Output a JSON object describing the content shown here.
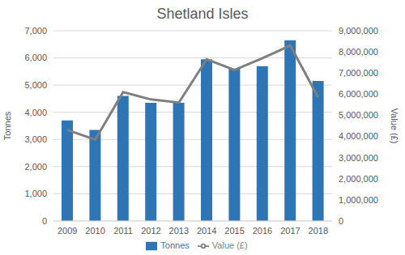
{
  "chart_data": {
    "type": "bar",
    "title": "Shetland Isles",
    "categories": [
      "2009",
      "2010",
      "2011",
      "2012",
      "2013",
      "2014",
      "2015",
      "2016",
      "2017",
      "2018"
    ],
    "series": [
      {
        "name": "Tonnes",
        "type": "bar",
        "color": "#2e75b6",
        "values": [
          3700,
          3350,
          4600,
          4350,
          4350,
          5950,
          5600,
          5700,
          6650,
          5150
        ]
      },
      {
        "name": "Value (£)",
        "type": "line",
        "axis": "y2",
        "color": "#7f7f7f",
        "marker": "none",
        "values": [
          4300000,
          3850000,
          6100000,
          5750000,
          5600000,
          7650000,
          7150000,
          7700000,
          8300000,
          5850000
        ]
      }
    ],
    "y_label": "Tonnes",
    "y2_label": "Value (£)",
    "ylim": [
      0,
      7000
    ],
    "yticks": [
      0,
      {
        "value": 1000,
        "label": "1,000"
      },
      {
        "value": 2000,
        "label": "2,000"
      },
      {
        "value": 3000,
        "label": "3,000"
      },
      {
        "value": 4000,
        "label": "4,000"
      },
      {
        "value": 5000,
        "label": "5,000"
      },
      {
        "value": 6000,
        "label": "6,000"
      },
      {
        "value": 7000,
        "label": "7,000"
      }
    ],
    "y2lim": [
      0,
      9000000
    ],
    "y2ticks": [
      0,
      {
        "value": 1000000,
        "label": "1,000,000"
      },
      {
        "value": 2000000,
        "label": "2,000,000"
      },
      {
        "value": 3000000,
        "label": "3,000,000"
      },
      {
        "value": 4000000,
        "label": "4,000,000"
      },
      {
        "value": 5000000,
        "label": "5,000,000"
      },
      {
        "value": 6000000,
        "label": "6,000,000"
      },
      {
        "value": 7000000,
        "label": "7,000,000"
      },
      {
        "value": 8000000,
        "label": "8,000,000"
      },
      {
        "value": 9000000,
        "label": "9,000,000"
      }
    ],
    "grid": true,
    "legend": "bottom"
  }
}
